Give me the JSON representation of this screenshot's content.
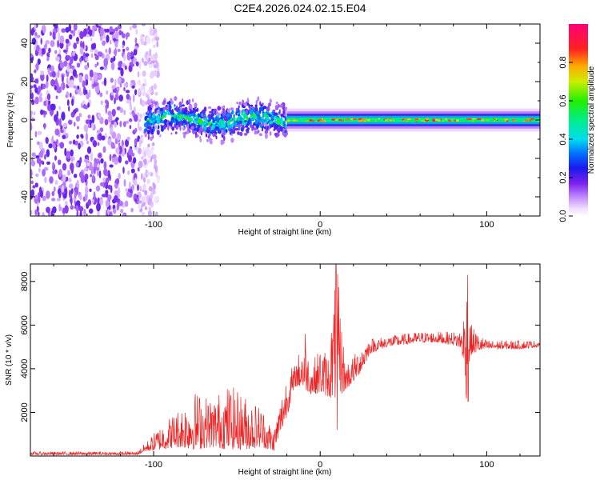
{
  "title": "C2E4.2026.024.02.15.E04",
  "chart_data": [
    {
      "type": "heatmap",
      "xlabel": "Height of straight line (km)",
      "ylabel": "Frequency (Hz)",
      "xlim": [
        -174,
        132
      ],
      "ylim": [
        -50,
        50
      ],
      "xticks": [
        -100,
        0,
        100
      ],
      "yticks": [
        -40,
        -20,
        0,
        20,
        40
      ],
      "colorbar": {
        "label": "Normalized spectral amplitude",
        "range": [
          0,
          1
        ],
        "ticks": [
          0.0,
          0.2,
          0.4,
          0.6,
          0.8
        ],
        "tick_labels": [
          "0.0",
          "0.2",
          "0.4",
          "0.6",
          "0.8"
        ]
      },
      "regions": [
        {
          "x": [
            -174,
            -105
          ],
          "freq_spread": [
            -50,
            50
          ],
          "description": "broadband noise"
        },
        {
          "x": [
            -105,
            -20
          ],
          "freq_spread": [
            -8,
            8
          ],
          "description": "turbulent band"
        },
        {
          "x": [
            -20,
            132
          ],
          "freq_spread": [
            -2,
            2
          ],
          "description": "coherent carrier"
        }
      ]
    },
    {
      "type": "line",
      "xlabel": "Height of straight line (km)",
      "ylabel": "SNR (10 * v/v)",
      "xlim": [
        -174,
        132
      ],
      "ylim": [
        0,
        8800
      ],
      "xticks": [
        -100,
        0,
        100
      ],
      "yticks": [
        2000,
        4000,
        6000,
        8000
      ],
      "color": "#ee2222",
      "envelope": {
        "x": [
          -174,
          -110,
          -105,
          -95,
          -85,
          -75,
          -65,
          -55,
          -45,
          -35,
          -28,
          -20,
          -15,
          -10,
          -5,
          0,
          5,
          10,
          15,
          20,
          25,
          30,
          40,
          50,
          60,
          70,
          80,
          85,
          88,
          90,
          95,
          100,
          110,
          120,
          132
        ],
        "low": [
          50,
          50,
          200,
          300,
          400,
          300,
          400,
          300,
          300,
          400,
          200,
          1800,
          3200,
          3100,
          2800,
          2900,
          2700,
          2600,
          3000,
          3400,
          3900,
          4700,
          5000,
          5100,
          5200,
          5200,
          5100,
          4900,
          2500,
          4600,
          4800,
          4900,
          4900,
          4900,
          5000
        ],
        "high": [
          200,
          200,
          600,
          1500,
          2200,
          3000,
          2700,
          3300,
          2800,
          2300,
          1200,
          3900,
          4200,
          5500,
          4300,
          5000,
          4800,
          8800,
          4300,
          4600,
          5200,
          5400,
          5500,
          5600,
          5700,
          5700,
          5700,
          5800,
          8300,
          6100,
          5600,
          5300,
          5300,
          5300,
          5300
        ]
      },
      "spikes": [
        {
          "x": -9,
          "value": 5600
        },
        {
          "x": 9.5,
          "value": 8800
        },
        {
          "x": 88.5,
          "value": 8300
        },
        {
          "x": 88.8,
          "value": 2500
        },
        {
          "x": 10.3,
          "value": 1200
        }
      ]
    }
  ]
}
